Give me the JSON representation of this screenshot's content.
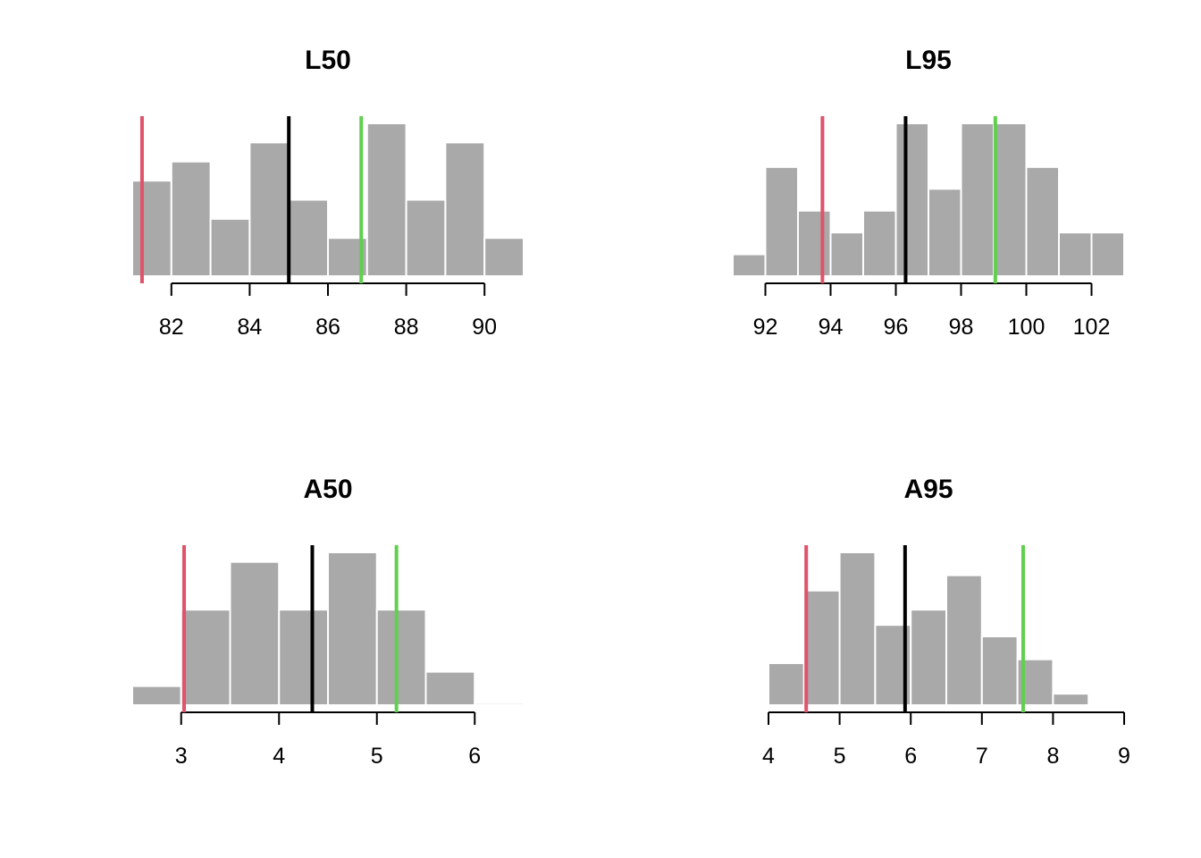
{
  "chart_data": [
    {
      "type": "histogram",
      "title": "L50",
      "xlim": [
        81,
        91
      ],
      "ticks": [
        82,
        84,
        86,
        88,
        90
      ],
      "tick_labels": [
        "82",
        "84",
        "86",
        "88",
        "90"
      ],
      "bins": [
        81,
        82,
        83,
        84,
        85,
        86,
        87,
        88,
        89,
        90,
        91
      ],
      "counts": [
        5,
        6,
        3,
        7,
        4,
        2,
        8,
        4,
        7,
        2
      ],
      "ymax": 8,
      "reference_lines": [
        {
          "value": 81.25,
          "color": "#DF536B"
        },
        {
          "value": 85.0,
          "color": "#000000"
        },
        {
          "value": 86.85,
          "color": "#61D04F"
        }
      ]
    },
    {
      "type": "histogram",
      "title": "L95",
      "xlim": [
        91,
        103
      ],
      "ticks": [
        92,
        94,
        96,
        98,
        100,
        102
      ],
      "tick_labels": [
        "92",
        "94",
        "96",
        "98",
        "100",
        "102"
      ],
      "bins": [
        91,
        92,
        93,
        94,
        95,
        96,
        97,
        98,
        99,
        100,
        101,
        102,
        103
      ],
      "counts": [
        1,
        5,
        3,
        2,
        3,
        7,
        4,
        7,
        7,
        5,
        2,
        2
      ],
      "ymax": 7,
      "reference_lines": [
        {
          "value": 93.75,
          "color": "#DF536B"
        },
        {
          "value": 96.3,
          "color": "#000000"
        },
        {
          "value": 99.05,
          "color": "#61D04F"
        }
      ]
    },
    {
      "type": "histogram",
      "title": "A50",
      "xlim": [
        2.5,
        6.5
      ],
      "ticks": [
        3,
        4,
        5,
        6
      ],
      "tick_labels": [
        "3",
        "4",
        "5",
        "6"
      ],
      "bins": [
        2.5,
        3.0,
        3.5,
        4.0,
        4.5,
        5.0,
        5.5,
        6.0,
        6.5
      ],
      "counts": [
        2,
        10,
        15,
        10,
        16,
        10,
        3.5,
        0.2
      ],
      "ymax": 16,
      "reference_lines": [
        {
          "value": 3.03,
          "color": "#DF536B"
        },
        {
          "value": 4.34,
          "color": "#000000"
        },
        {
          "value": 5.2,
          "color": "#61D04F"
        }
      ]
    },
    {
      "type": "histogram",
      "title": "A95",
      "xlim": [
        4,
        9
      ],
      "ticks": [
        4,
        5,
        6,
        7,
        8,
        9
      ],
      "tick_labels": [
        "4",
        "5",
        "6",
        "7",
        "8",
        "9"
      ],
      "bins": [
        4.0,
        4.5,
        5.0,
        5.5,
        6.0,
        6.5,
        7.0,
        7.5,
        8.0,
        8.5
      ],
      "counts": [
        5.5,
        15,
        20,
        10.5,
        12.5,
        17,
        9,
        6,
        1.5
      ],
      "ymax": 20,
      "reference_lines": [
        {
          "value": 4.53,
          "color": "#DF536B"
        },
        {
          "value": 5.92,
          "color": "#000000"
        },
        {
          "value": 7.58,
          "color": "#61D04F"
        }
      ]
    }
  ],
  "colors": {
    "bar_fill": "#A9A9A9",
    "bar_border": "#FFFFFF",
    "axis": "#000000"
  }
}
